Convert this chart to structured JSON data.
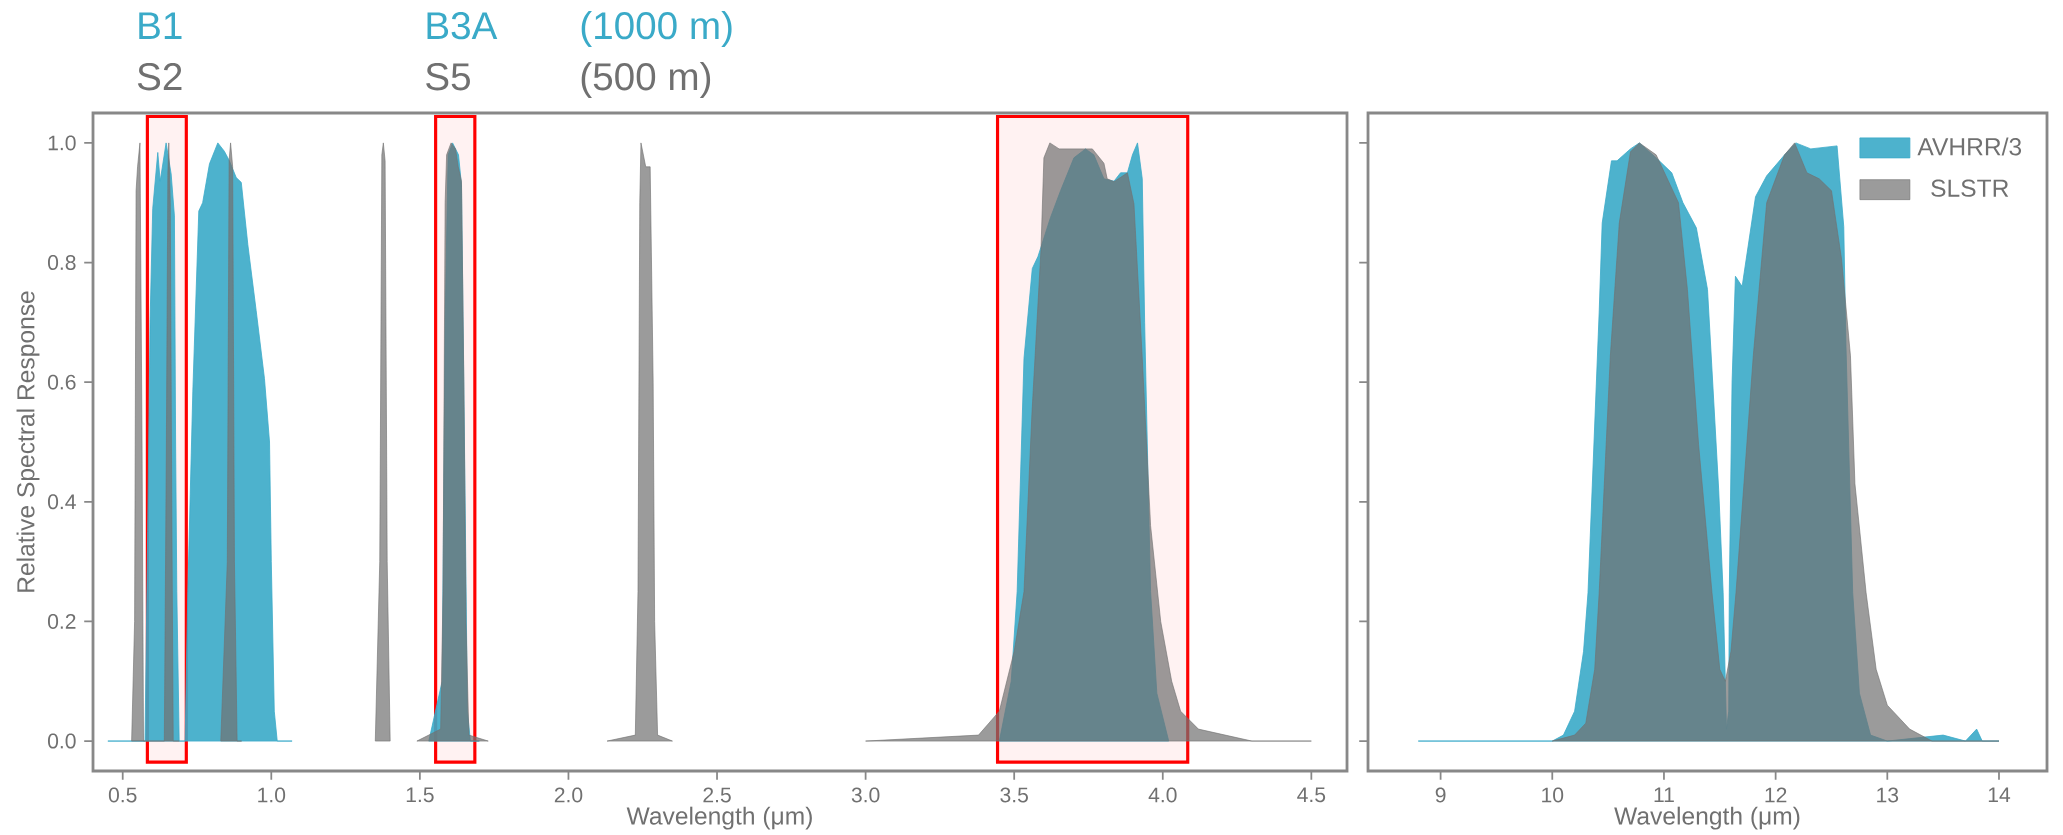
{
  "chart_data": [
    {
      "type": "area",
      "xlabel": "Wavelength (μm)",
      "ylabel": "Relative Spectral Response",
      "annotations": [
        "B1",
        "S2",
        "B3A",
        "S5",
        "(1000 m)",
        "(500 m)"
      ],
      "xlim": [
        0.4,
        4.62
      ],
      "ylim": [
        -0.05,
        1.05
      ],
      "xticks": [
        0.5,
        {
          "value": 1,
          "label": "1.0"
        },
        1.5,
        {
          "value": 2,
          "label": "2.0"
        },
        2.5,
        {
          "value": 3,
          "label": "3.0"
        },
        3.5,
        {
          "value": 4,
          "label": "4.0"
        },
        4.5
      ],
      "yticks": [
        {
          "value": 0,
          "label": "0.0"
        },
        0.2,
        0.4,
        0.6,
        0.8,
        {
          "value": 1,
          "label": "1.0"
        }
      ],
      "bands": [
        {
          "axis": "x",
          "from": 0.583,
          "to": 0.714,
          "color": "#ff0000"
        },
        {
          "axis": "x",
          "from": 1.553,
          "to": 1.685,
          "color": "#ff0000"
        },
        {
          "axis": "x",
          "from": 3.444,
          "to": 4.084,
          "color": "#ff0000"
        }
      ],
      "series": [
        {
          "color": "#3aaac8",
          "x": [
            0.45,
            0.575,
            0.584,
            0.592,
            0.601,
            0.618,
            0.626,
            0.646,
            0.663,
            0.674,
            0.678,
            0.682,
            0.69,
            0.71,
            0.719,
            0.736,
            0.756,
            0.769,
            0.792,
            0.82,
            0.842,
            0.859,
            0.882,
            0.899,
            0.921,
            0.949,
            0.977,
            0.994,
            1.0,
            1.01,
            1.02,
            1.07,
            1.3,
            1.53,
            1.575,
            1.585,
            1.595,
            1.61,
            1.63,
            1.64,
            1.65,
            1.66,
            1.67,
            1.7,
            2.7,
            3.45,
            3.49,
            3.51,
            3.533,
            3.561,
            3.58,
            3.622,
            3.656,
            3.701,
            3.74,
            3.768,
            3.802,
            3.836,
            3.858,
            3.881,
            3.898,
            3.915,
            3.931,
            3.939,
            3.954,
            3.959,
            3.98,
            4.02
          ],
          "values": [
            0,
            0,
            0.35,
            0.7,
            0.89,
            0.984,
            0.936,
            1.0,
            0.948,
            0.878,
            0.5,
            0.25,
            0,
            0,
            0.25,
            0.585,
            0.886,
            0.9,
            0.965,
            1.0,
            0.986,
            0.97,
            0.942,
            0.934,
            0.83,
            0.72,
            0.606,
            0.5,
            0.3,
            0.05,
            0,
            0,
            null,
            0,
            0.1,
            0.7,
            0.98,
            1.0,
            0.98,
            0.93,
            0.5,
            0.05,
            0,
            0,
            null,
            0,
            0.1,
            0.25,
            0.64,
            0.79,
            0.81,
            0.875,
            0.92,
            0.975,
            0.99,
            0.98,
            0.94,
            0.936,
            0.95,
            0.95,
            0.98,
            1.0,
            0.94,
            0.7,
            0.36,
            0.25,
            0.08,
            0
          ]
        },
        {
          "color": "#707070",
          "x": [
            0.53,
            0.54,
            0.545,
            0.55,
            0.558,
            0.565,
            0.57,
            0.64,
            0.647,
            0.652,
            0.655,
            0.66,
            0.665,
            0.67,
            0.69,
            0.75,
            0.83,
            0.852,
            0.858,
            0.863,
            0.87,
            0.876,
            0.885,
            0.9,
            1.2,
            1.35,
            1.365,
            1.372,
            1.377,
            1.383,
            1.39,
            1.4,
            1.45,
            1.49,
            1.57,
            1.578,
            1.585,
            1.59,
            1.605,
            1.62,
            1.629,
            1.64,
            1.648,
            1.655,
            1.665,
            1.73,
            1.9,
            2.13,
            2.225,
            2.234,
            2.24,
            2.244,
            2.26,
            2.275,
            2.285,
            2.29,
            2.3,
            2.35,
            2.7,
            3.0,
            3.38,
            3.45,
            3.5,
            3.533,
            3.56,
            3.59,
            3.6,
            3.62,
            3.651,
            3.713,
            3.763,
            3.802,
            3.813,
            3.836,
            3.881,
            3.903,
            3.931,
            3.959,
            3.993,
            4.03,
            4.06,
            4.12,
            4.3,
            4.5
          ],
          "values": [
            0,
            0.2,
            0.92,
            0.96,
            1.0,
            0.5,
            0,
            0,
            0.5,
            0.95,
            1.0,
            0.9,
            0.4,
            0,
            0,
            null,
            0,
            0.3,
            0.97,
            1.0,
            0.96,
            0.3,
            0,
            0,
            null,
            0,
            0.3,
            0.98,
            1.0,
            0.97,
            0.3,
            0,
            null,
            0,
            0.02,
            0.25,
            0.9,
            0.98,
            1.0,
            0.99,
            0.96,
            0.936,
            0.6,
            0.2,
            0.01,
            0,
            null,
            0,
            0.01,
            0.25,
            0.9,
            1.0,
            0.96,
            0.96,
            0.6,
            0.2,
            0.01,
            0,
            null,
            0,
            0.01,
            0.05,
            0.15,
            0.25,
            0.55,
            0.82,
            0.975,
            1.0,
            0.99,
            0.99,
            0.99,
            0.966,
            0.94,
            0.935,
            0.95,
            0.898,
            0.64,
            0.36,
            0.2,
            0.1,
            0.05,
            0.02,
            0,
            0
          ]
        }
      ]
    },
    {
      "type": "area",
      "xlabel": "Wavelength (μm)",
      "legend": "top right",
      "tick_labels": "x",
      "xlim": [
        8.35,
        14.43
      ],
      "ylim": [
        -0.05,
        1.05
      ],
      "xticks": [
        9,
        10,
        11,
        12,
        13,
        14
      ],
      "yticks": [
        0.0,
        0.2,
        0.4,
        0.6,
        0.8,
        1.0
      ],
      "series": [
        {
          "name": "AVHRR/3",
          "color": "#3aaac8",
          "x": [
            8.8,
            10.0,
            10.1,
            10.2,
            10.28,
            10.32,
            10.42,
            10.447,
            10.53,
            10.58,
            10.7,
            10.78,
            10.93,
            11.07,
            11.17,
            11.29,
            11.39,
            11.49,
            11.53,
            11.56,
            11.58,
            11.585,
            11.61,
            11.64,
            11.7,
            11.82,
            11.92,
            12.08,
            12.18,
            12.315,
            12.55,
            12.61,
            12.63,
            12.69,
            12.75,
            12.85,
            13.0,
            13.5,
            13.7,
            13.8,
            13.85,
            14.0
          ],
          "values": [
            0,
            0,
            0.01,
            0.05,
            0.15,
            0.248,
            0.717,
            0.866,
            0.97,
            0.97,
            0.99,
            1.0,
            0.975,
            0.95,
            0.9,
            0.858,
            0.755,
            0.42,
            0.248,
            0.02,
            0.05,
            0.248,
            0.6,
            0.777,
            0.76,
            0.91,
            0.945,
            0.98,
            1.0,
            0.99,
            0.995,
            0.86,
            0.66,
            0.248,
            0.08,
            0.01,
            0,
            0.01,
            0,
            0.02,
            0,
            0
          ]
        },
        {
          "name": "SLSTR",
          "color": "#707070",
          "x": [
            10.0,
            10.2,
            10.3,
            10.38,
            10.42,
            10.52,
            10.6,
            10.7,
            10.78,
            10.93,
            11.13,
            11.21,
            11.31,
            11.43,
            11.5,
            11.55,
            11.6,
            11.645,
            11.8,
            11.92,
            12.08,
            12.17,
            12.28,
            12.39,
            12.5,
            12.59,
            12.67,
            12.71,
            12.81,
            12.9,
            13.0,
            13.2,
            13.4,
            14.0
          ],
          "values": [
            0,
            0.01,
            0.03,
            0.12,
            0.248,
            0.644,
            0.866,
            0.985,
            1.0,
            0.98,
            0.9,
            0.755,
            0.496,
            0.248,
            0.12,
            0.1,
            0.15,
            0.248,
            0.644,
            0.9,
            0.98,
            1.0,
            0.95,
            0.94,
            0.92,
            0.806,
            0.644,
            0.43,
            0.248,
            0.12,
            0.06,
            0.02,
            0,
            0
          ]
        }
      ]
    }
  ]
}
